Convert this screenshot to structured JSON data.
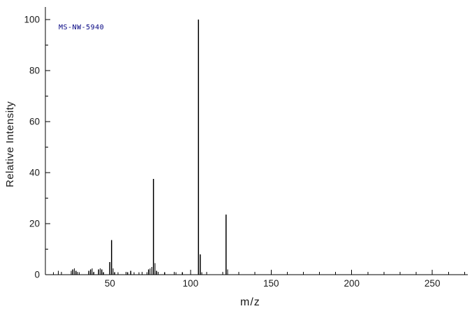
{
  "labels": {
    "spectrum_id": "MS-NW-5940",
    "xlabel": "m/z",
    "ylabel": "Relative Intensity"
  },
  "colors": {
    "background": "#ffffff",
    "axis": "#000000",
    "peak": "#000000",
    "tick_label": "#1a1a1a",
    "spectrum_id": "#000080"
  },
  "chart_data": {
    "type": "bar",
    "subtype": "mass-spectrum",
    "title": "MS-NW-5940",
    "xlabel": "m/z",
    "ylabel": "Relative Intensity",
    "xlim": [
      10,
      272
    ],
    "ylim": [
      0,
      100
    ],
    "grid": false,
    "legend": false,
    "x_major_ticks": [
      50,
      100,
      150,
      200,
      250
    ],
    "x_minor_tick_interval": 10,
    "y_major_ticks": [
      0,
      20,
      40,
      60,
      80,
      100
    ],
    "y_minor_tick_interval": 10,
    "peaks": [
      [
        15,
        1.0
      ],
      [
        18,
        1.5
      ],
      [
        26,
        1.5
      ],
      [
        27,
        2.0
      ],
      [
        28,
        2.5
      ],
      [
        29,
        1.5
      ],
      [
        31,
        1.0
      ],
      [
        37,
        1.5
      ],
      [
        38,
        2.0
      ],
      [
        39,
        2.5
      ],
      [
        40,
        1.0
      ],
      [
        43,
        2.0
      ],
      [
        44,
        2.5
      ],
      [
        45,
        2.0
      ],
      [
        46,
        1.0
      ],
      [
        50,
        5.0
      ],
      [
        51,
        13.5
      ],
      [
        52,
        2.5
      ],
      [
        53,
        1.0
      ],
      [
        55,
        1.0
      ],
      [
        61,
        1.0
      ],
      [
        63,
        1.5
      ],
      [
        65,
        1.0
      ],
      [
        68,
        1.0
      ],
      [
        73,
        1.0
      ],
      [
        74,
        2.0
      ],
      [
        75,
        2.5
      ],
      [
        76,
        3.0
      ],
      [
        77,
        37.5
      ],
      [
        78,
        4.5
      ],
      [
        79,
        1.5
      ],
      [
        84,
        1.0
      ],
      [
        91,
        1.0
      ],
      [
        95,
        1.0
      ],
      [
        105,
        100.0
      ],
      [
        106,
        8.0
      ],
      [
        107,
        1.0
      ],
      [
        122,
        23.5
      ],
      [
        123,
        2.0
      ]
    ]
  }
}
